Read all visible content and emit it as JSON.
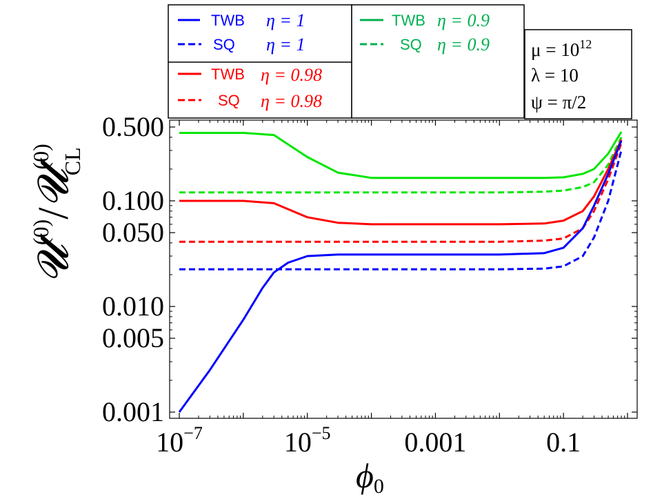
{
  "chart_data": {
    "type": "line",
    "title": "",
    "xlabel": "φ0",
    "ylabel": "U(0)/U(0)CL",
    "xscale": "log",
    "yscale": "log",
    "xlim": [
      1e-07,
      1
    ],
    "ylim": [
      0.001,
      0.5
    ],
    "x_ticks": [
      "10−7",
      "10−5",
      "0.001",
      "0.1"
    ],
    "y_ticks": [
      "0.001",
      "0.005",
      "0.010",
      "0.050",
      "0.100",
      "0.500"
    ],
    "grid": false,
    "series": [
      {
        "name": "TWB η = 0.9",
        "color": "#00e600",
        "dash": "solid",
        "x": [
          1e-07,
          1e-06,
          3e-06,
          1e-05,
          3e-05,
          0.0001,
          0.001,
          0.01,
          0.05,
          0.1,
          0.2,
          0.3,
          0.5,
          0.8
        ],
        "y": [
          0.44,
          0.44,
          0.42,
          0.26,
          0.185,
          0.165,
          0.165,
          0.165,
          0.165,
          0.167,
          0.18,
          0.2,
          0.28,
          0.45
        ]
      },
      {
        "name": "SQ η = 0.9",
        "color": "#00e600",
        "dash": "dashed",
        "x": [
          1e-07,
          0.0001,
          0.001,
          0.01,
          0.05,
          0.1,
          0.2,
          0.3,
          0.5,
          0.8
        ],
        "y": [
          0.12,
          0.12,
          0.12,
          0.12,
          0.122,
          0.125,
          0.135,
          0.15,
          0.22,
          0.4
        ]
      },
      {
        "name": "TWB η = 0.98",
        "color": "#ff0000",
        "dash": "solid",
        "x": [
          1e-07,
          1e-06,
          3e-06,
          1e-05,
          3e-05,
          0.0001,
          0.001,
          0.01,
          0.05,
          0.1,
          0.2,
          0.3,
          0.5,
          0.8
        ],
        "y": [
          0.1,
          0.1,
          0.095,
          0.07,
          0.062,
          0.06,
          0.06,
          0.06,
          0.061,
          0.065,
          0.08,
          0.11,
          0.2,
          0.38
        ]
      },
      {
        "name": "SQ η = 0.98",
        "color": "#ff0000",
        "dash": "dashed",
        "x": [
          1e-07,
          0.0001,
          0.001,
          0.01,
          0.05,
          0.1,
          0.2,
          0.3,
          0.5,
          0.8
        ],
        "y": [
          0.041,
          0.041,
          0.041,
          0.041,
          0.042,
          0.044,
          0.055,
          0.08,
          0.16,
          0.35
        ]
      },
      {
        "name": "TWB η = 1",
        "color": "#0000ff",
        "dash": "solid",
        "x": [
          1e-07,
          3e-07,
          1e-06,
          2e-06,
          3e-06,
          5e-06,
          1e-05,
          3e-05,
          0.0001,
          0.001,
          0.01,
          0.05,
          0.1,
          0.2,
          0.3,
          0.5,
          0.8
        ],
        "y": [
          0.001,
          0.0025,
          0.0075,
          0.015,
          0.021,
          0.026,
          0.03,
          0.031,
          0.031,
          0.031,
          0.031,
          0.032,
          0.036,
          0.055,
          0.09,
          0.18,
          0.37
        ]
      },
      {
        "name": "SQ η = 1",
        "color": "#0000ff",
        "dash": "dashed",
        "x": [
          1e-07,
          0.0001,
          0.001,
          0.01,
          0.05,
          0.1,
          0.2,
          0.3,
          0.5,
          0.8
        ],
        "y": [
          0.0225,
          0.0225,
          0.0225,
          0.0225,
          0.0228,
          0.024,
          0.03,
          0.045,
          0.1,
          0.3
        ]
      }
    ],
    "legend": [
      {
        "label": "TWB",
        "eta": "η = 1",
        "color": "#0000ff",
        "dash": "solid"
      },
      {
        "label": "SQ",
        "eta": "η = 1",
        "color": "#0000ff",
        "dash": "dashed"
      },
      {
        "label": "TWB",
        "eta": "η = 0.9",
        "color": "#00b050",
        "dash": "solid"
      },
      {
        "label": "SQ",
        "eta": "η = 0.9",
        "color": "#00b050",
        "dash": "dashed"
      },
      {
        "label": "TWB",
        "eta": "η = 0.98",
        "color": "#ff0000",
        "dash": "solid"
      },
      {
        "label": "SQ",
        "eta": "η = 0.98",
        "color": "#ff0000",
        "dash": "dashed"
      }
    ],
    "parameters": {
      "mu": "μ = 10",
      "mu_exp": "12",
      "lambda": "λ = 10",
      "psi": "ψ = π/2"
    }
  }
}
